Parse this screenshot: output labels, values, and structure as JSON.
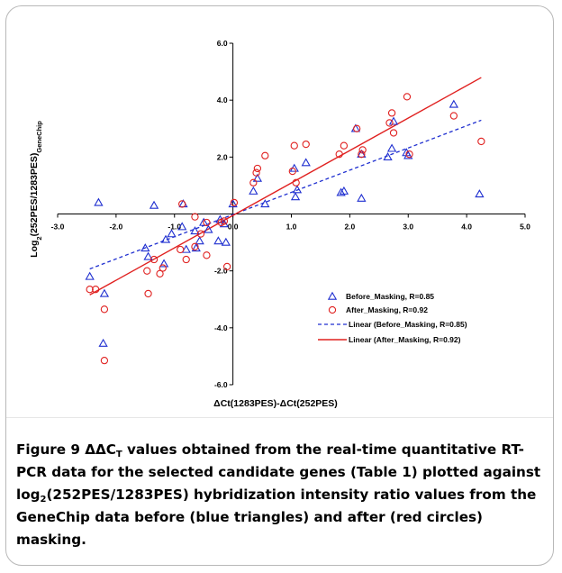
{
  "caption": {
    "figure_label": "Figure 9",
    "text_parts": [
      "ΔΔC",
      "T",
      " values obtained from the real-time quantitative RT-PCR data for the selected candidate genes (Table 1) plotted against log",
      "2",
      "(252PES/1283PES) hybridization intensity ratio values from the GeneChip data before (blue triangles) and after (red circles) masking."
    ]
  },
  "chart_data": {
    "type": "scatter",
    "xlabel": "ΔCt(1283PES)-ΔCt(252PES)",
    "ylabel_parts": [
      "Log",
      "2",
      "(252PES/1283PES)",
      "GeneChip"
    ],
    "xlim": [
      -3.0,
      5.0
    ],
    "ylim": [
      -6.0,
      6.0
    ],
    "xticks": [
      "-3.0",
      "-2.0",
      "-1.0",
      "0.0",
      "1.0",
      "2.0",
      "3.0",
      "4.0",
      "5.0"
    ],
    "yticks": [
      "-6.0",
      "-4.0",
      "-2.0",
      "0.0",
      "2.0",
      "4.0",
      "6.0"
    ],
    "grid": false,
    "legend_position": "bottom-right",
    "colors": {
      "before": "#1f2fd0",
      "after": "#e0201f"
    },
    "series": [
      {
        "name": "Before_Masking, R=0.85",
        "marker": "triangle",
        "points": [
          [
            -2.45,
            -2.2
          ],
          [
            -2.3,
            0.4
          ],
          [
            -2.2,
            -2.8
          ],
          [
            -2.22,
            -4.55
          ],
          [
            -1.5,
            -1.2
          ],
          [
            -1.45,
            -1.5
          ],
          [
            -1.35,
            0.3
          ],
          [
            -1.18,
            -1.75
          ],
          [
            -1.15,
            -0.9
          ],
          [
            -1.05,
            -0.7
          ],
          [
            -0.87,
            -0.45
          ],
          [
            -0.85,
            0.35
          ],
          [
            -0.8,
            -1.25
          ],
          [
            -0.65,
            -0.6
          ],
          [
            -0.63,
            -1.2
          ],
          [
            -0.57,
            -0.95
          ],
          [
            -0.5,
            -0.3
          ],
          [
            -0.42,
            -0.55
          ],
          [
            -0.25,
            -0.95
          ],
          [
            -0.22,
            -0.2
          ],
          [
            -0.15,
            -0.35
          ],
          [
            -0.12,
            -1.0
          ],
          [
            0.0,
            0.35
          ],
          [
            0.35,
            0.8
          ],
          [
            0.42,
            1.25
          ],
          [
            0.55,
            0.35
          ],
          [
            1.05,
            1.6
          ],
          [
            1.07,
            0.6
          ],
          [
            1.1,
            0.85
          ],
          [
            1.25,
            1.8
          ],
          [
            1.85,
            0.75
          ],
          [
            1.9,
            0.8
          ],
          [
            2.1,
            3.0
          ],
          [
            2.2,
            0.55
          ],
          [
            2.2,
            2.1
          ],
          [
            2.65,
            2.0
          ],
          [
            2.72,
            2.3
          ],
          [
            2.75,
            3.25
          ],
          [
            2.97,
            2.15
          ],
          [
            3.0,
            2.05
          ],
          [
            3.78,
            3.85
          ],
          [
            4.22,
            0.7
          ]
        ]
      },
      {
        "name": "After_Masking, R=0.92",
        "marker": "circle",
        "points": [
          [
            -2.45,
            -2.65
          ],
          [
            -2.35,
            -2.65
          ],
          [
            -2.2,
            -3.35
          ],
          [
            -2.2,
            -5.15
          ],
          [
            -1.47,
            -2.0
          ],
          [
            -1.45,
            -2.8
          ],
          [
            -1.35,
            -1.6
          ],
          [
            -1.25,
            -2.1
          ],
          [
            -1.2,
            -1.9
          ],
          [
            -0.9,
            -1.25
          ],
          [
            -0.87,
            0.35
          ],
          [
            -0.8,
            -1.6
          ],
          [
            -0.65,
            -1.15
          ],
          [
            -0.65,
            -0.1
          ],
          [
            -0.55,
            -0.7
          ],
          [
            -0.45,
            -0.3
          ],
          [
            -0.45,
            -1.45
          ],
          [
            -0.2,
            -0.3
          ],
          [
            -0.15,
            -0.25
          ],
          [
            -0.1,
            -1.85
          ],
          [
            0.02,
            0.4
          ],
          [
            0.35,
            1.1
          ],
          [
            0.4,
            1.45
          ],
          [
            0.42,
            1.6
          ],
          [
            0.55,
            2.05
          ],
          [
            1.02,
            1.5
          ],
          [
            1.05,
            2.4
          ],
          [
            1.08,
            1.1
          ],
          [
            1.25,
            2.45
          ],
          [
            1.82,
            2.1
          ],
          [
            1.9,
            2.4
          ],
          [
            2.12,
            3.0
          ],
          [
            2.2,
            2.1
          ],
          [
            2.22,
            2.25
          ],
          [
            2.68,
            3.2
          ],
          [
            2.72,
            3.55
          ],
          [
            2.75,
            2.85
          ],
          [
            2.98,
            4.12
          ],
          [
            3.02,
            2.1
          ],
          [
            3.78,
            3.45
          ],
          [
            4.25,
            2.55
          ]
        ]
      }
    ],
    "trendlines": [
      {
        "name": "Linear (Before_Masking, R=0.85)",
        "style": "dashed",
        "slope": 0.78,
        "intercept": -0.02,
        "x_range": [
          -2.45,
          4.25
        ]
      },
      {
        "name": "Linear (After_Masking, R=0.92)",
        "style": "solid",
        "slope": 1.14,
        "intercept": -0.05,
        "x_range": [
          -2.45,
          4.25
        ]
      }
    ]
  }
}
